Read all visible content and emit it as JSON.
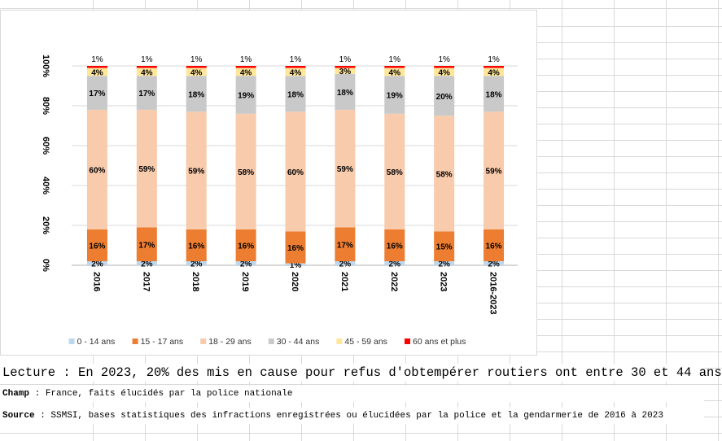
{
  "chart_data": {
    "type": "bar",
    "stacked": true,
    "percent": true,
    "categories": [
      "2016",
      "2017",
      "2018",
      "2019",
      "2020",
      "2021",
      "2022",
      "2023",
      "2016-2023"
    ],
    "series": [
      {
        "name": "0 - 14 ans",
        "color": "#bdd7ee",
        "values": [
          2,
          2,
          2,
          2,
          1,
          2,
          2,
          2,
          2
        ]
      },
      {
        "name": "15 - 17 ans",
        "color": "#ed7d31",
        "values": [
          16,
          17,
          16,
          16,
          16,
          17,
          16,
          15,
          16
        ]
      },
      {
        "name": "18 - 29 ans",
        "color": "#f8cbad",
        "values": [
          60,
          59,
          59,
          58,
          60,
          59,
          58,
          58,
          59
        ]
      },
      {
        "name": "30 - 44 ans",
        "color": "#c9c9c9",
        "values": [
          17,
          17,
          18,
          19,
          18,
          18,
          19,
          20,
          18
        ]
      },
      {
        "name": "45 - 59 ans",
        "color": "#ffe699",
        "values": [
          4,
          4,
          4,
          4,
          4,
          3,
          4,
          4,
          4
        ]
      },
      {
        "name": "60 ans et plus",
        "color": "#ff0000",
        "values": [
          1,
          1,
          1,
          1,
          1,
          1,
          1,
          1,
          1
        ]
      }
    ],
    "yticks": [
      "0%",
      "20%",
      "40%",
      "60%",
      "80%",
      "100%"
    ],
    "ylim": [
      0,
      100
    ],
    "grid": true,
    "legend": "bottom"
  },
  "notes": {
    "lecture": "Lecture : En 2023, 20% des mis en cause pour refus d'obtempérer routiers ont entre 30 et 44 ans",
    "champ_label": "Champ",
    "champ_text": " : France, faits élucidés par la police nationale",
    "source_label": "Source",
    "source_text": " : SSMSI, bases statistiques des infractions enregistrées ou élucidées par la police et la gendarmerie de 2016 à 2023"
  }
}
